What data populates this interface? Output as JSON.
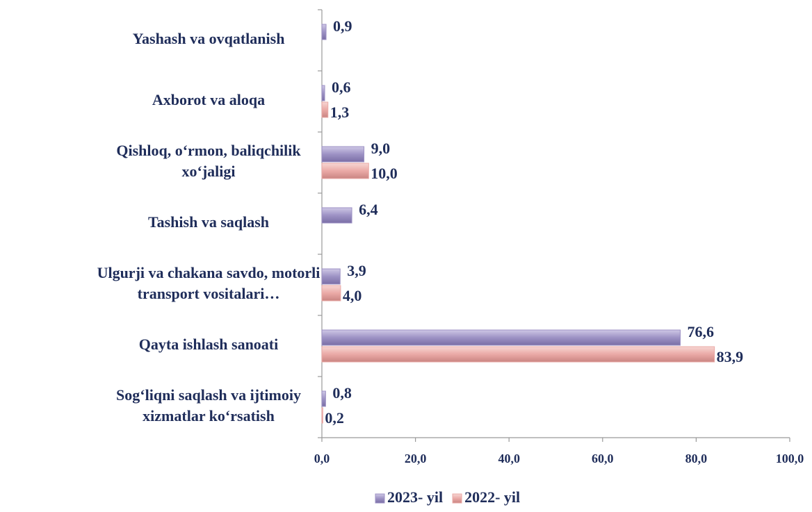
{
  "chart_data": {
    "type": "bar",
    "orientation": "horizontal",
    "categories": [
      "Yashash va ovqatlanish",
      "Axborot va aloqa",
      "Qishloq, o‘rmon, baliqchilik xo‘jaligi",
      "Tashish va saqlash",
      "Ulgurji va chakana savdo, motorli transport vositalari…",
      "Qayta ishlash  sanoati",
      "Sog‘liqni saqlash va ijtimoiy xizmatlar ko‘rsatish"
    ],
    "series": [
      {
        "name": "2023- yil",
        "color": "#9d92c4",
        "values": [
          0.9,
          0.6,
          9.0,
          6.4,
          3.9,
          76.6,
          0.8
        ],
        "value_labels": [
          "0,9",
          "0,6",
          "9,0",
          "6,4",
          "3,9",
          "76,6",
          "0,8"
        ]
      },
      {
        "name": "2022- yil",
        "color": "#eaa9a6",
        "values": [
          null,
          1.3,
          10.0,
          null,
          4.0,
          83.9,
          0.2
        ],
        "value_labels": [
          null,
          "1,3",
          "10,0",
          null,
          "4,0",
          "83,9",
          "0,2"
        ]
      }
    ],
    "xlim": [
      0,
      100
    ],
    "xticks": [
      {
        "value": 0,
        "label": "0,0"
      },
      {
        "value": 20,
        "label": "20,0"
      },
      {
        "value": 40,
        "label": "40,0"
      },
      {
        "value": 60,
        "label": "60,0"
      },
      {
        "value": 80,
        "label": "80,0"
      },
      {
        "value": 100,
        "label": "100,0"
      }
    ],
    "legend": "bottom"
  }
}
